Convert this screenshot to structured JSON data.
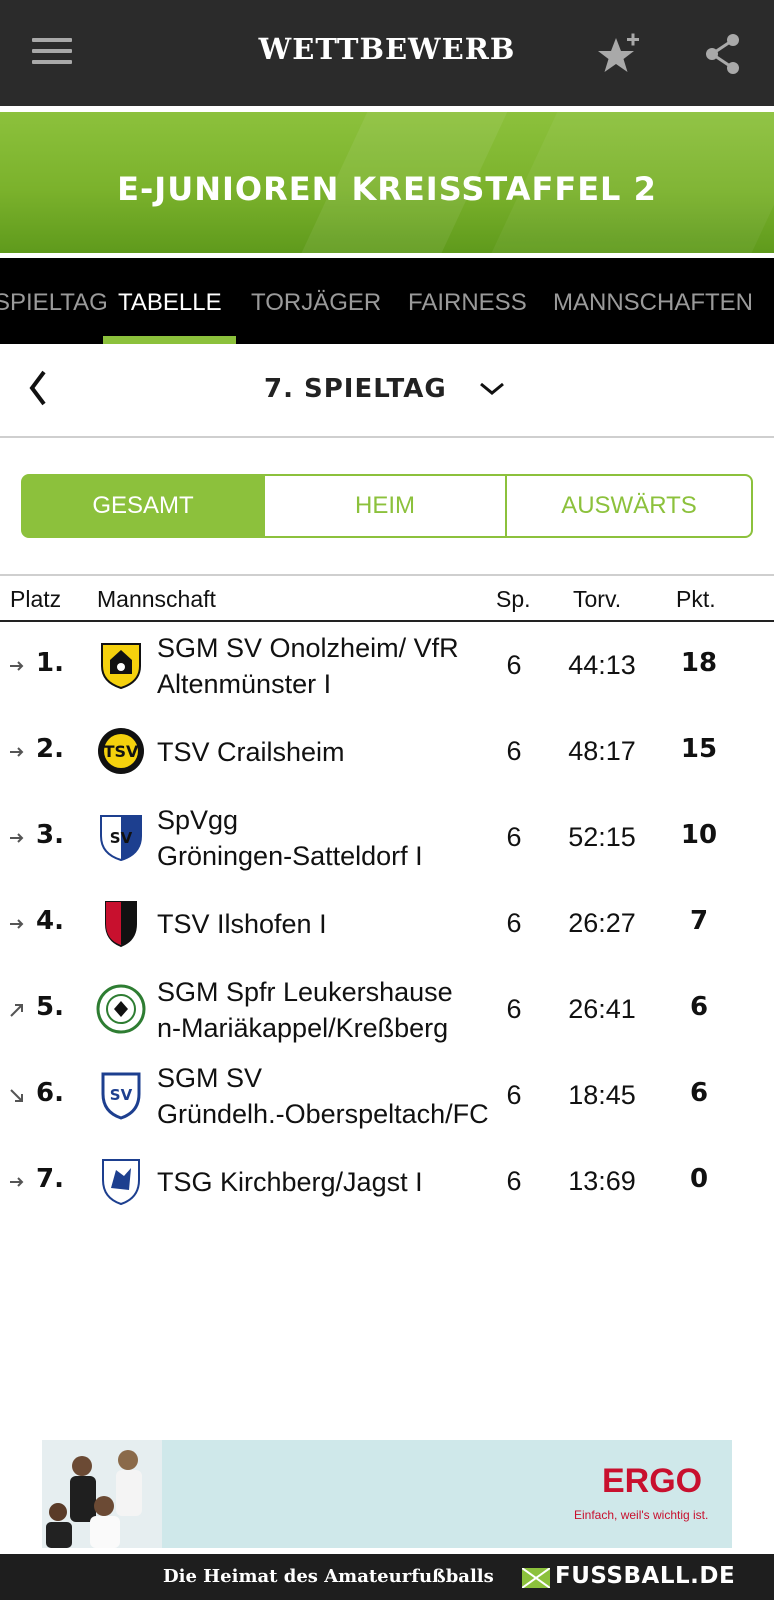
{
  "header": {
    "title": "WETTBEWERB",
    "menu_icon": "menu-icon",
    "favorite_icon": "star-plus-icon",
    "share_icon": "share-icon"
  },
  "banner": {
    "title": "E-JUNIOREN KREISSTAFFEL 2"
  },
  "tabs": [
    {
      "label": "SPIELTAG",
      "active": false
    },
    {
      "label": "TABELLE",
      "active": true
    },
    {
      "label": "TORJÄGER",
      "active": false
    },
    {
      "label": "FAIRNESS",
      "active": false
    },
    {
      "label": "MANNSCHAFTEN",
      "active": false
    }
  ],
  "matchday": {
    "label": "7. SPIELTAG"
  },
  "segments": [
    {
      "label": "GESAMT",
      "active": true
    },
    {
      "label": "HEIM",
      "active": false
    },
    {
      "label": "AUSWÄRTS",
      "active": false
    }
  ],
  "table": {
    "columns": {
      "platz": "Platz",
      "mannschaft": "Mannschaft",
      "sp": "Sp.",
      "torv": "Torv.",
      "pkt": "Pkt."
    },
    "rows": [
      {
        "rank": "1.",
        "trend": "same",
        "team_line1": "SGM SV Onolzheim/ VfR",
        "team_line2": "Altenmünster I",
        "sp": "6",
        "torv": "44:13",
        "pkt": "18"
      },
      {
        "rank": "2.",
        "trend": "same",
        "team_line1": "TSV Crailsheim",
        "team_line2": "",
        "sp": "6",
        "torv": "48:17",
        "pkt": "15"
      },
      {
        "rank": "3.",
        "trend": "same",
        "team_line1": "SpVgg",
        "team_line2": "Gröningen-Satteldorf I",
        "sp": "6",
        "torv": "52:15",
        "pkt": "10"
      },
      {
        "rank": "4.",
        "trend": "same",
        "team_line1": "TSV Ilshofen I",
        "team_line2": "",
        "sp": "6",
        "torv": "26:27",
        "pkt": "7"
      },
      {
        "rank": "5.",
        "trend": "up",
        "team_line1": "SGM Spfr Leukershause",
        "team_line2": "n-Mariäkappel/Kreßberg",
        "sp": "6",
        "torv": "26:41",
        "pkt": "6"
      },
      {
        "rank": "6.",
        "trend": "down",
        "team_line1": "SGM SV",
        "team_line2": "Gründelh.-Oberspeltach/FC",
        "sp": "6",
        "torv": "18:45",
        "pkt": "6"
      },
      {
        "rank": "7.",
        "trend": "same",
        "team_line1": "TSG Kirchberg/Jagst I",
        "team_line2": "",
        "sp": "6",
        "torv": "13:69",
        "pkt": "0"
      }
    ]
  },
  "ad": {
    "brand": "ERGO",
    "slogan": "Einfach, weil's wichtig ist."
  },
  "footer": {
    "tagline": "Die Heimat des Amateurfußballs",
    "brand": "FUSSBALL.DE"
  },
  "colors": {
    "accent": "#8cc13c",
    "topbar": "#2b2b2b",
    "tabs_bg": "#000000",
    "ad_red": "#c8102e"
  }
}
